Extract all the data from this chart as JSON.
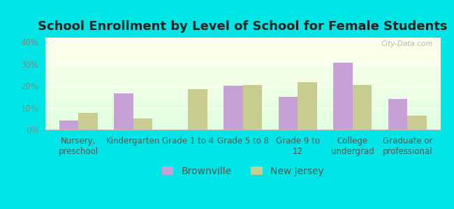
{
  "title": "School Enrollment by Level of School for Female Students",
  "categories": [
    "Nursery,\npreschool",
    "Kindergarten",
    "Grade 1 to 4",
    "Grade 5 to 8",
    "Grade 9 to\n12",
    "College\nundergrad",
    "Graduate or\nprofessional"
  ],
  "brownville": [
    4,
    16.5,
    0,
    20,
    15,
    30.5,
    14
  ],
  "new_jersey": [
    7.5,
    5,
    18.5,
    20.5,
    21.5,
    20.5,
    6.5
  ],
  "brownville_color": "#c8a0d8",
  "new_jersey_color": "#c8cc90",
  "ylim": [
    0,
    42
  ],
  "yticks": [
    0,
    10,
    20,
    30,
    40
  ],
  "ytick_labels": [
    "0%",
    "10%",
    "20%",
    "30%",
    "40%"
  ],
  "fig_bg_color": "#00e5e5",
  "bar_width": 0.35,
  "title_fontsize": 13,
  "legend_fontsize": 10,
  "tick_fontsize": 8.5,
  "watermark": "City-Data.com"
}
